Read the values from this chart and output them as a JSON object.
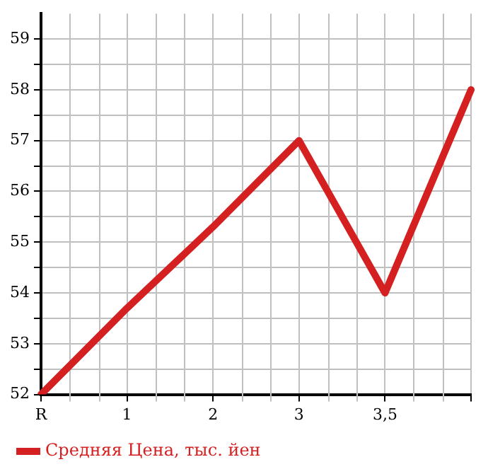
{
  "chart_data": {
    "type": "line",
    "categories": [
      "R",
      "1",
      "2",
      "3",
      "3,5",
      null
    ],
    "series": [
      {
        "name": "Средняя Цена, тыс. йен",
        "color": "#d42020",
        "values": [
          52,
          53.7,
          55.3,
          57,
          54,
          58
        ]
      }
    ],
    "ylim": [
      52,
      59.5
    ],
    "yticks": [
      52,
      {
        "value": 52.5,
        "label": null
      },
      53,
      {
        "value": 53.5,
        "label": null
      },
      54,
      {
        "value": 54.5,
        "label": null
      },
      55,
      {
        "value": 55.5,
        "label": null
      },
      56,
      {
        "value": 56.5,
        "label": null
      },
      57,
      {
        "value": 57.5,
        "label": null
      },
      58,
      {
        "value": 58.5,
        "label": null
      },
      59
    ],
    "grid": true,
    "legend": "bottom left",
    "marker": "none",
    "line_style": "solid"
  }
}
